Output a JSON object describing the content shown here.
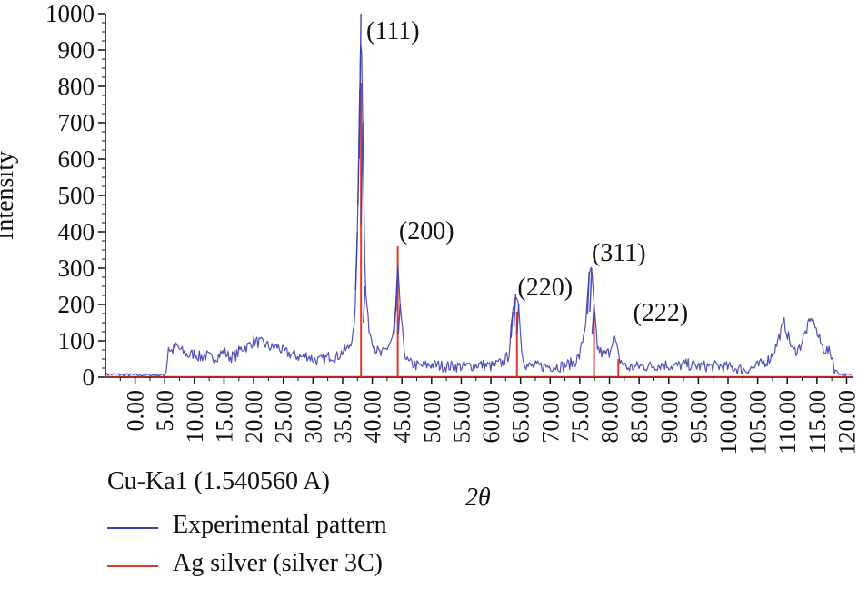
{
  "radiation_label": "Cu-Ka1 (1.540560 A)",
  "chart_data": {
    "type": "line",
    "title": "",
    "xlabel": "2θ",
    "ylabel": "Intensity",
    "xlim": [
      -5,
      121
    ],
    "ylim": [
      0,
      1000
    ],
    "x_ticks": [
      "0.00",
      "5.00",
      "10.00",
      "15.00",
      "20.00",
      "25.00",
      "30.00",
      "35.00",
      "40.00",
      "45.00",
      "50.00",
      "55.00",
      "60.00",
      "65.00",
      "70.00",
      "75.00",
      "80.00",
      "85.00",
      "90.00",
      "95.00",
      "100.00",
      "105.00",
      "110.00",
      "115.00",
      "120.00"
    ],
    "y_ticks": [
      "0",
      "100",
      "200",
      "300",
      "400",
      "500",
      "600",
      "700",
      "800",
      "900",
      "1000"
    ],
    "legend": {
      "placement": "bottom-left"
    },
    "series": [
      {
        "name": "Experimental pattern",
        "color": "#3b3fb0",
        "points": [
          [
            -5,
            8
          ],
          [
            0,
            6
          ],
          [
            5,
            6
          ],
          [
            5.3,
            20
          ],
          [
            5.6,
            85
          ],
          [
            6,
            70
          ],
          [
            7,
            85
          ],
          [
            8,
            70
          ],
          [
            9,
            60
          ],
          [
            10,
            65
          ],
          [
            11,
            55
          ],
          [
            12,
            60
          ],
          [
            13,
            50
          ],
          [
            14,
            60
          ],
          [
            15,
            70
          ],
          [
            16,
            55
          ],
          [
            17,
            60
          ],
          [
            18,
            80
          ],
          [
            19,
            85
          ],
          [
            20,
            100
          ],
          [
            21,
            95
          ],
          [
            22,
            90
          ],
          [
            23,
            80
          ],
          [
            24,
            85
          ],
          [
            25,
            70
          ],
          [
            26,
            65
          ],
          [
            27,
            60
          ],
          [
            28,
            55
          ],
          [
            29,
            60
          ],
          [
            30,
            50
          ],
          [
            31,
            45
          ],
          [
            32,
            50
          ],
          [
            33,
            60
          ],
          [
            34,
            55
          ],
          [
            35,
            70
          ],
          [
            36,
            80
          ],
          [
            37,
            130
          ],
          [
            37.5,
            400
          ],
          [
            37.9,
            790
          ],
          [
            38.1,
            1000
          ],
          [
            38.4,
            700
          ],
          [
            38.8,
            250
          ],
          [
            39.5,
            130
          ],
          [
            40.5,
            80
          ],
          [
            41.5,
            60
          ],
          [
            42.5,
            80
          ],
          [
            43.5,
            110
          ],
          [
            44,
            200
          ],
          [
            44.3,
            305
          ],
          [
            44.7,
            200
          ],
          [
            45.3,
            80
          ],
          [
            46,
            40
          ],
          [
            48,
            30
          ],
          [
            50,
            35
          ],
          [
            52,
            30
          ],
          [
            54,
            30
          ],
          [
            56,
            30
          ],
          [
            58,
            35
          ],
          [
            60,
            30
          ],
          [
            62,
            40
          ],
          [
            63,
            60
          ],
          [
            63.7,
            180
          ],
          [
            64.2,
            230
          ],
          [
            64.7,
            200
          ],
          [
            65.2,
            70
          ],
          [
            66,
            30
          ],
          [
            68,
            30
          ],
          [
            70,
            30
          ],
          [
            72,
            30
          ],
          [
            74,
            40
          ],
          [
            75,
            60
          ],
          [
            76,
            150
          ],
          [
            76.6,
            290
          ],
          [
            77,
            300
          ],
          [
            77.4,
            200
          ],
          [
            78,
            80
          ],
          [
            79,
            60
          ],
          [
            80,
            70
          ],
          [
            80.6,
            110
          ],
          [
            81,
            100
          ],
          [
            81.6,
            50
          ],
          [
            83,
            25
          ],
          [
            85,
            30
          ],
          [
            87,
            30
          ],
          [
            89,
            35
          ],
          [
            91,
            30
          ],
          [
            93,
            35
          ],
          [
            95,
            30
          ],
          [
            97,
            30
          ],
          [
            99,
            30
          ],
          [
            101,
            25
          ],
          [
            103,
            20
          ],
          [
            105,
            30
          ],
          [
            107,
            50
          ],
          [
            108,
            80
          ],
          [
            109,
            130
          ],
          [
            109.5,
            150
          ],
          [
            110,
            120
          ],
          [
            111,
            70
          ],
          [
            112,
            80
          ],
          [
            113,
            120
          ],
          [
            114,
            160
          ],
          [
            114.5,
            155
          ],
          [
            115,
            120
          ],
          [
            116,
            80
          ],
          [
            117,
            70
          ],
          [
            117.5,
            60
          ],
          [
            118,
            20
          ],
          [
            119,
            8
          ],
          [
            121,
            5
          ]
        ]
      },
      {
        "name": "Ag silver (silver 3C)",
        "color": "#e03a2a",
        "peaks": [
          {
            "x": 38.1,
            "y": 810
          },
          {
            "x": 44.3,
            "y": 360
          },
          {
            "x": 64.4,
            "y": 180
          },
          {
            "x": 77.4,
            "y": 180
          },
          {
            "x": 81.5,
            "y": 50
          }
        ]
      }
    ],
    "annotations": [
      {
        "text": "(111)",
        "x": 39,
        "y": 930
      },
      {
        "text": "(200)",
        "x": 44.5,
        "y": 380
      },
      {
        "text": "(220)",
        "x": 64.5,
        "y": 225
      },
      {
        "text": "(311)",
        "x": 77,
        "y": 320
      },
      {
        "text": "(222)",
        "x": 84,
        "y": 155
      }
    ]
  }
}
